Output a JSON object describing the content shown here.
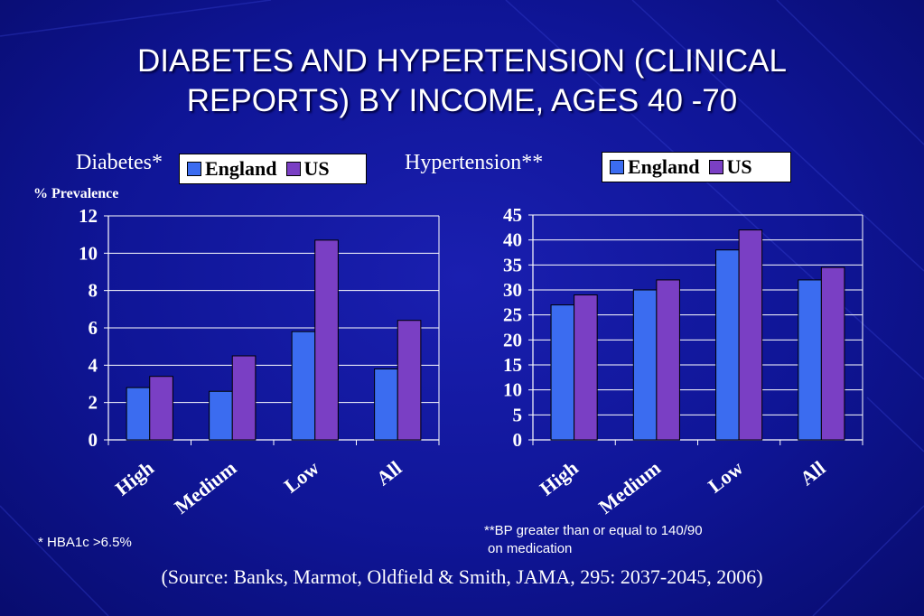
{
  "title_line1": "DIABETES AND HYPERTENSION (CLINICAL",
  "title_line2": "REPORTS) BY INCOME, AGES 40 -70",
  "colors": {
    "england": "#3b6cf0",
    "us": "#7a3fc4",
    "background": "#0f1596"
  },
  "legend": {
    "england": "England",
    "us": "US"
  },
  "notes": {
    "diabetes": "* HBA1c >6.5%",
    "hypertension_line1": "**BP greater than or equal to 140/90",
    "hypertension_line2": "on medication"
  },
  "source": "(Source: Banks, Marmot, Oldfield & Smith, JAMA, 295: 2037-2045, 2006)",
  "chart_data": [
    {
      "type": "bar",
      "title": "Diabetes*",
      "ylabel": "% Prevalence",
      "xlabel": "",
      "categories": [
        "High",
        "Medium",
        "Low",
        "All"
      ],
      "series": [
        {
          "name": "England",
          "values": [
            2.8,
            2.6,
            5.8,
            3.8
          ]
        },
        {
          "name": "US",
          "values": [
            3.4,
            4.5,
            10.7,
            6.4
          ]
        }
      ],
      "ylim": [
        0,
        12
      ],
      "yticks": [
        "0",
        "2",
        "4",
        "6",
        "8",
        "10",
        "12"
      ],
      "grid": true,
      "legend": "top"
    },
    {
      "type": "bar",
      "title": "Hypertension**",
      "ylabel": "",
      "xlabel": "",
      "categories": [
        "High",
        "Medium",
        "Low",
        "All"
      ],
      "series": [
        {
          "name": "England",
          "values": [
            27,
            30,
            38,
            32
          ]
        },
        {
          "name": "US",
          "values": [
            29,
            32,
            42,
            34.5
          ]
        }
      ],
      "ylim": [
        0,
        45
      ],
      "yticks": [
        "0",
        "5",
        "10",
        "15",
        "20",
        "25",
        "30",
        "35",
        "40",
        "45"
      ],
      "grid": true,
      "legend": "top"
    }
  ]
}
